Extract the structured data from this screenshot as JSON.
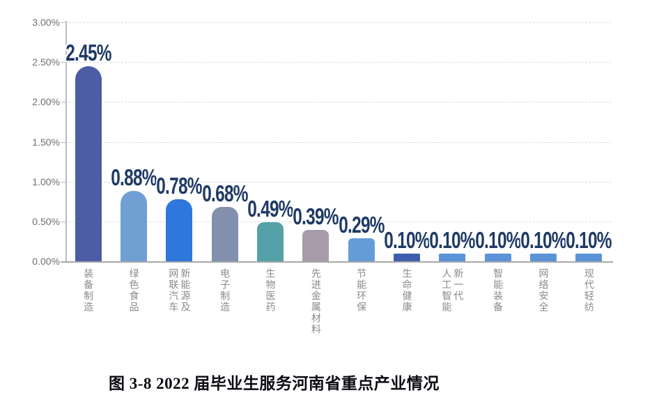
{
  "page": {
    "background": "#ffffff"
  },
  "caption": {
    "text": "图 3-8  2022 届毕业生服务河南省重点产业情况"
  },
  "chart_data": {
    "type": "bar",
    "title": "图 3-8 2022 届毕业生服务河南省重点产业情况",
    "xlabel": "",
    "ylabel": "",
    "ylim": [
      0,
      3
    ],
    "y_ticks": [
      "3.00%",
      "2.50%",
      "2.00%",
      "1.50%",
      "1.00%",
      "0.50%",
      "0.00%"
    ],
    "grid": "horizontal-dashed",
    "legend": "none",
    "categories": [
      "装备制造",
      "绿色食品",
      "新能源及网联汽车",
      "电子制造",
      "生物医药",
      "先进金属材料",
      "节能环保",
      "生命健康",
      "新一代人工智能",
      "智能装备",
      "网络安全",
      "现代轻纺"
    ],
    "category_display_lines": [
      [
        "装备制造"
      ],
      [
        "绿色食品"
      ],
      [
        "新能源及",
        "网联汽车"
      ],
      [
        "电子制造"
      ],
      [
        "生物医药"
      ],
      [
        "先进金属材料"
      ],
      [
        "节能环保"
      ],
      [
        "生命健康"
      ],
      [
        "新一代",
        "人工智能"
      ],
      [
        "智能装备"
      ],
      [
        "网络安全"
      ],
      [
        "现代轻纺"
      ]
    ],
    "values": [
      2.45,
      0.88,
      0.78,
      0.68,
      0.49,
      0.39,
      0.29,
      0.1,
      0.1,
      0.1,
      0.1,
      0.1
    ],
    "value_labels": [
      "2.45%",
      "0.88%",
      "0.78%",
      "0.68%",
      "0.49%",
      "0.39%",
      "0.29%",
      "0.10%",
      "0.10%",
      "0.10%",
      "0.10%",
      "0.10%"
    ],
    "bar_colors": [
      "#4C5DA6",
      "#6F9FD3",
      "#2E77DB",
      "#8290AE",
      "#54A1A8",
      "#A79BAB",
      "#649CD8",
      "#3E5DAD",
      "#5B93D8",
      "#5B93D8",
      "#5B93D8",
      "#5B93D8"
    ],
    "colors": {
      "value_label": "#1F3A66",
      "axis_line": "#B7BDC9",
      "baseline": "#A8A8A8",
      "gridline": "#DCDCDC",
      "tick_text": "#6E6E6E",
      "category_text": "#8A8A8A",
      "caption_text": "#0B0B12"
    }
  }
}
